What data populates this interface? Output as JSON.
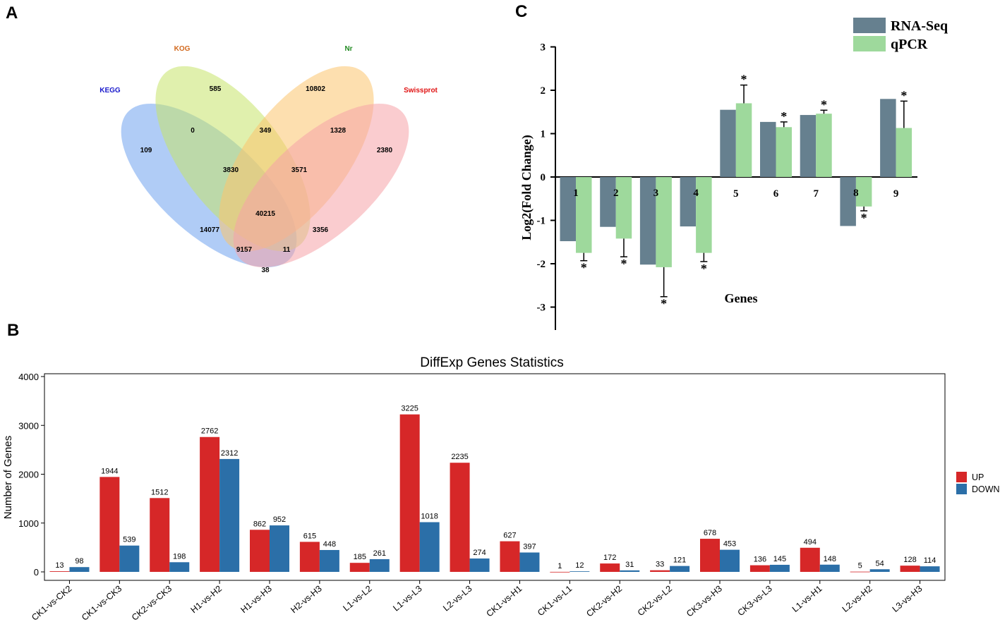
{
  "panels": {
    "a": "A",
    "b": "B",
    "c": "C"
  },
  "chart_data": [
    {
      "type": "venn",
      "sets": [
        {
          "name": "KEGG",
          "color": "#1a1acc",
          "fill": "#6fa3ef"
        },
        {
          "name": "KOG",
          "color": "#d2691e",
          "fill": "#c6e36a"
        },
        {
          "name": "Nr",
          "color": "#228b22",
          "fill": "#fbc56e"
        },
        {
          "name": "Swissprot",
          "color": "#e01010",
          "fill": "#f5a3a8"
        }
      ],
      "regions": [
        {
          "sets": "KEGG",
          "value": "109"
        },
        {
          "sets": "KOG",
          "value": "585"
        },
        {
          "sets": "Nr",
          "value": "10802"
        },
        {
          "sets": "Swissprot",
          "value": "2380"
        },
        {
          "sets": "KEGG&KOG",
          "value": "0"
        },
        {
          "sets": "KOG&Nr",
          "value": "349"
        },
        {
          "sets": "Nr&Swissprot",
          "value": "1328"
        },
        {
          "sets": "KEGG&KOG&Nr",
          "value": "3830"
        },
        {
          "sets": "KOG&Nr&Swissprot",
          "value": "3571"
        },
        {
          "sets": "KEGG&KOG&Nr&Swissprot",
          "value": "40215"
        },
        {
          "sets": "KEGG&Nr",
          "value": "14077"
        },
        {
          "sets": "KOG&Swissprot",
          "value": "3356"
        },
        {
          "sets": "KEGG&Nr&Swissprot",
          "value": "9157"
        },
        {
          "sets": "KEGG&KOG&Swissprot",
          "value": "11"
        },
        {
          "sets": "KEGG&Swissprot",
          "value": "38"
        }
      ]
    },
    {
      "type": "bar",
      "title": "DiffExp Genes Statistics",
      "ylabel": "Number of Genes",
      "xlabel": "",
      "ylim": [
        0,
        4000
      ],
      "yticks": [
        0,
        1000,
        2000,
        3000,
        4000
      ],
      "categories": [
        "CK1-vs-CK2",
        "CK1-vs-CK3",
        "CK2-vs-CK3",
        "H1-vs-H2",
        "H1-vs-H3",
        "H2-vs-H3",
        "L1-vs-L2",
        "L1-vs-L3",
        "L2-vs-L3",
        "CK1-vs-H1",
        "CK1-vs-L1",
        "CK2-vs-H2",
        "CK2-vs-L2",
        "CK3-vs-H3",
        "CK3-vs-L3",
        "L1-vs-H1",
        "L2-vs-H2",
        "L3-vs-H3"
      ],
      "series": [
        {
          "name": "UP",
          "color": "#d62728",
          "values": [
            13,
            1944,
            1512,
            2762,
            862,
            615,
            185,
            3225,
            2235,
            627,
            1,
            172,
            33,
            678,
            136,
            494,
            5,
            128
          ]
        },
        {
          "name": "DOWN",
          "color": "#2b6fa8",
          "values": [
            98,
            539,
            198,
            2312,
            952,
            448,
            261,
            1018,
            274,
            397,
            12,
            31,
            121,
            453,
            145,
            148,
            54,
            114
          ]
        }
      ],
      "legend": "right"
    },
    {
      "type": "bar",
      "title": "",
      "xlabel": "Genes",
      "ylabel": "Log2(Fold Change)",
      "ylim": [
        -3.5,
        3
      ],
      "yticks": [
        -3,
        -2,
        -1,
        0,
        1,
        2,
        3
      ],
      "categories": [
        "1",
        "2",
        "3",
        "4",
        "5",
        "6",
        "7",
        "8",
        "9"
      ],
      "series": [
        {
          "name": "RNA-Seq",
          "color": "#66808f",
          "values": [
            -1.48,
            -1.15,
            -2.02,
            -1.14,
            1.55,
            1.27,
            1.43,
            -1.13,
            1.8
          ]
        },
        {
          "name": "qPCR",
          "color": "#9ed99c",
          "values": [
            -1.75,
            -1.42,
            -2.08,
            -1.75,
            1.7,
            1.15,
            1.46,
            -0.68,
            1.13
          ],
          "errors": [
            0.18,
            0.42,
            0.68,
            0.2,
            0.42,
            0.12,
            0.08,
            0.1,
            0.62
          ]
        }
      ],
      "significance": [
        "*",
        "*",
        "*",
        "*",
        "*",
        "*",
        "*",
        "*",
        "*"
      ],
      "legend": "top-right"
    }
  ]
}
